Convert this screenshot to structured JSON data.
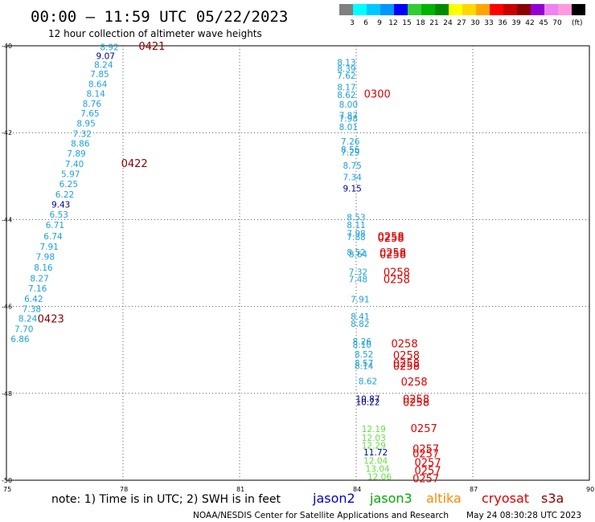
{
  "header": {
    "title": "00:00 – 11:59 UTC 05/22/2023",
    "subtitle": "12 hour collection of altimeter wave heights"
  },
  "color_scale": {
    "unit": "(ft)",
    "bins": [
      {
        "label": "",
        "color": "#808080"
      },
      {
        "label": "3",
        "color": "#00ffff"
      },
      {
        "label": "6",
        "color": "#00c8ff"
      },
      {
        "label": "9",
        "color": "#0096ff"
      },
      {
        "label": "12",
        "color": "#0000ff"
      },
      {
        "label": "15",
        "color": "#32cd32"
      },
      {
        "label": "18",
        "color": "#00b400"
      },
      {
        "label": "21",
        "color": "#008c00"
      },
      {
        "label": "24",
        "color": "#ffff00"
      },
      {
        "label": "27",
        "color": "#ffd700"
      },
      {
        "label": "30",
        "color": "#ffa500"
      },
      {
        "label": "33",
        "color": "#ff0000"
      },
      {
        "label": "36",
        "color": "#c80000"
      },
      {
        "label": "39",
        "color": "#8b0000"
      },
      {
        "label": "42",
        "color": "#9400d3"
      },
      {
        "label": "45",
        "color": "#ee82ee"
      },
      {
        "label": "70",
        "color": "#ff99dd"
      },
      {
        "label": "",
        "color": "#000000"
      }
    ]
  },
  "colors": {
    "cyan_text": "#1ea0d8",
    "navy_text": "#00008b",
    "green_text": "#66dd44",
    "time_red": "#dd0000",
    "time_darkred": "#880000",
    "grid": "#555555"
  },
  "chart_data": {
    "type": "scatter",
    "xlabel": "",
    "ylabel": "",
    "xlim": [
      75,
      90
    ],
    "ylim": [
      -50,
      -40
    ],
    "x_ticks": [
      75,
      78,
      81,
      84,
      87,
      90
    ],
    "y_ticks": [
      -40,
      -42,
      -44,
      -46,
      -48,
      -50
    ],
    "grid": true,
    "wave_heights": [
      {
        "lon": 77.65,
        "lat": -40.03,
        "text": "8.92",
        "color": "cyan"
      },
      {
        "lon": 77.55,
        "lat": -40.23,
        "text": "9.07",
        "color": "navy"
      },
      {
        "lon": 77.5,
        "lat": -40.43,
        "text": "8.24",
        "color": "cyan"
      },
      {
        "lon": 77.4,
        "lat": -40.65,
        "text": "7.85",
        "color": "cyan"
      },
      {
        "lon": 77.35,
        "lat": -40.88,
        "text": "8.64",
        "color": "cyan"
      },
      {
        "lon": 77.3,
        "lat": -41.1,
        "text": "8.14",
        "color": "cyan"
      },
      {
        "lon": 77.2,
        "lat": -41.33,
        "text": "8.76",
        "color": "cyan"
      },
      {
        "lon": 77.15,
        "lat": -41.55,
        "text": "7.65",
        "color": "cyan"
      },
      {
        "lon": 77.05,
        "lat": -41.78,
        "text": "8.95",
        "color": "cyan"
      },
      {
        "lon": 76.95,
        "lat": -42.02,
        "text": "7.32",
        "color": "cyan"
      },
      {
        "lon": 76.9,
        "lat": -42.25,
        "text": "8.86",
        "color": "cyan"
      },
      {
        "lon": 76.8,
        "lat": -42.48,
        "text": "7.89",
        "color": "cyan"
      },
      {
        "lon": 76.75,
        "lat": -42.72,
        "text": "7.40",
        "color": "cyan"
      },
      {
        "lon": 76.65,
        "lat": -42.95,
        "text": "5.97",
        "color": "cyan"
      },
      {
        "lon": 76.6,
        "lat": -43.18,
        "text": "6.25",
        "color": "cyan"
      },
      {
        "lon": 76.5,
        "lat": -43.42,
        "text": "6.22",
        "color": "cyan"
      },
      {
        "lon": 76.4,
        "lat": -43.65,
        "text": "9.43",
        "color": "navy"
      },
      {
        "lon": 76.35,
        "lat": -43.88,
        "text": "6.53",
        "color": "cyan"
      },
      {
        "lon": 76.25,
        "lat": -44.12,
        "text": "6.71",
        "color": "cyan"
      },
      {
        "lon": 76.2,
        "lat": -44.38,
        "text": "6.74",
        "color": "cyan"
      },
      {
        "lon": 76.1,
        "lat": -44.62,
        "text": "7.91",
        "color": "cyan"
      },
      {
        "lon": 76.0,
        "lat": -44.85,
        "text": "7.98",
        "color": "cyan"
      },
      {
        "lon": 75.95,
        "lat": -45.1,
        "text": "8.16",
        "color": "cyan"
      },
      {
        "lon": 75.85,
        "lat": -45.35,
        "text": "8.27",
        "color": "cyan"
      },
      {
        "lon": 75.8,
        "lat": -45.58,
        "text": "7.16",
        "color": "cyan"
      },
      {
        "lon": 75.7,
        "lat": -45.82,
        "text": "6.42",
        "color": "cyan"
      },
      {
        "lon": 75.65,
        "lat": -46.05,
        "text": "7.38",
        "color": "cyan"
      },
      {
        "lon": 75.55,
        "lat": -46.28,
        "text": "8.24",
        "color": "cyan"
      },
      {
        "lon": 75.45,
        "lat": -46.52,
        "text": "7.70",
        "color": "cyan"
      },
      {
        "lon": 75.35,
        "lat": -46.75,
        "text": "6.86",
        "color": "cyan"
      },
      {
        "lon": 83.75,
        "lat": -40.38,
        "text": "8.13",
        "color": "cyan"
      },
      {
        "lon": 83.75,
        "lat": -40.53,
        "text": "8.39",
        "color": "cyan"
      },
      {
        "lon": 83.75,
        "lat": -40.68,
        "text": "7.62",
        "color": "cyan"
      },
      {
        "lon": 83.75,
        "lat": -40.95,
        "text": "8.17",
        "color": "cyan"
      },
      {
        "lon": 83.75,
        "lat": -41.13,
        "text": "8.62",
        "color": "cyan"
      },
      {
        "lon": 83.8,
        "lat": -41.35,
        "text": "8.00",
        "color": "cyan"
      },
      {
        "lon": 83.8,
        "lat": -41.6,
        "text": "7.87",
        "color": "cyan"
      },
      {
        "lon": 83.8,
        "lat": -41.67,
        "text": "7.98",
        "color": "cyan"
      },
      {
        "lon": 83.8,
        "lat": -41.87,
        "text": "8.01",
        "color": "cyan"
      },
      {
        "lon": 83.85,
        "lat": -42.2,
        "text": "7.26",
        "color": "cyan"
      },
      {
        "lon": 83.85,
        "lat": -42.38,
        "text": "8.56",
        "color": "cyan"
      },
      {
        "lon": 83.85,
        "lat": -42.45,
        "text": "7.29",
        "color": "cyan"
      },
      {
        "lon": 83.9,
        "lat": -42.75,
        "text": "8.75",
        "color": "cyan"
      },
      {
        "lon": 83.9,
        "lat": -43.02,
        "text": "7.34",
        "color": "cyan"
      },
      {
        "lon": 83.9,
        "lat": -43.28,
        "text": "9.15",
        "color": "navy"
      },
      {
        "lon": 84.0,
        "lat": -43.95,
        "text": "8.53",
        "color": "cyan"
      },
      {
        "lon": 84.0,
        "lat": -44.12,
        "text": "8.11",
        "color": "cyan"
      },
      {
        "lon": 84.0,
        "lat": -44.32,
        "text": "7.98",
        "color": "cyan"
      },
      {
        "lon": 84.0,
        "lat": -44.4,
        "text": "7.88",
        "color": "cyan"
      },
      {
        "lon": 84.0,
        "lat": -44.75,
        "text": "8.52",
        "color": "cyan"
      },
      {
        "lon": 84.05,
        "lat": -44.8,
        "text": "8.64",
        "color": "cyan"
      },
      {
        "lon": 84.05,
        "lat": -45.2,
        "text": "7.32",
        "color": "cyan"
      },
      {
        "lon": 84.05,
        "lat": -45.37,
        "text": "7.48",
        "color": "cyan"
      },
      {
        "lon": 84.1,
        "lat": -45.83,
        "text": "7.91",
        "color": "cyan"
      },
      {
        "lon": 84.1,
        "lat": -46.23,
        "text": "8.41",
        "color": "cyan"
      },
      {
        "lon": 84.1,
        "lat": -46.4,
        "text": "8.82",
        "color": "cyan"
      },
      {
        "lon": 84.15,
        "lat": -46.8,
        "text": "8.26",
        "color": "cyan"
      },
      {
        "lon": 84.15,
        "lat": -46.88,
        "text": "8.10",
        "color": "cyan"
      },
      {
        "lon": 84.2,
        "lat": -47.1,
        "text": "8.52",
        "color": "cyan"
      },
      {
        "lon": 84.2,
        "lat": -47.3,
        "text": "8.57",
        "color": "cyan"
      },
      {
        "lon": 84.2,
        "lat": -47.37,
        "text": "8.14",
        "color": "cyan"
      },
      {
        "lon": 84.3,
        "lat": -47.72,
        "text": "8.62",
        "color": "cyan"
      },
      {
        "lon": 84.3,
        "lat": -48.12,
        "text": "10.87",
        "color": "navy"
      },
      {
        "lon": 84.3,
        "lat": -48.2,
        "text": "10.22",
        "color": "navy"
      },
      {
        "lon": 84.45,
        "lat": -48.82,
        "text": "12.19",
        "color": "green"
      },
      {
        "lon": 84.45,
        "lat": -49.02,
        "text": "12.03",
        "color": "green"
      },
      {
        "lon": 84.45,
        "lat": -49.2,
        "text": "12.29",
        "color": "green"
      },
      {
        "lon": 84.5,
        "lat": -49.35,
        "text": "11.72",
        "color": "navy"
      },
      {
        "lon": 84.5,
        "lat": -49.55,
        "text": "12.04",
        "color": "green"
      },
      {
        "lon": 84.55,
        "lat": -49.73,
        "text": "13.04",
        "color": "green"
      },
      {
        "lon": 84.6,
        "lat": -49.92,
        "text": "12.06",
        "color": "green"
      }
    ],
    "time_labels": [
      {
        "lon": 78.4,
        "lat": -40.0,
        "text": "0421",
        "color": "darkred"
      },
      {
        "lon": 77.95,
        "lat": -42.7,
        "text": "0422",
        "color": "darkred"
      },
      {
        "lon": 75.8,
        "lat": -46.28,
        "text": "0423",
        "color": "darkred"
      },
      {
        "lon": 84.2,
        "lat": -41.1,
        "text": "0300",
        "color": "red"
      },
      {
        "lon": 84.55,
        "lat": -44.38,
        "text": "0258",
        "color": "red"
      },
      {
        "lon": 84.55,
        "lat": -44.42,
        "text": "0258",
        "color": "red"
      },
      {
        "lon": 84.6,
        "lat": -44.75,
        "text": "0258",
        "color": "red"
      },
      {
        "lon": 84.6,
        "lat": -44.8,
        "text": "0258",
        "color": "red"
      },
      {
        "lon": 84.7,
        "lat": -45.2,
        "text": "0258",
        "color": "red"
      },
      {
        "lon": 84.7,
        "lat": -45.37,
        "text": "0258",
        "color": "red"
      },
      {
        "lon": 84.9,
        "lat": -46.85,
        "text": "0258",
        "color": "red"
      },
      {
        "lon": 84.95,
        "lat": -47.12,
        "text": "0258",
        "color": "red"
      },
      {
        "lon": 84.95,
        "lat": -47.3,
        "text": "0258",
        "color": "red"
      },
      {
        "lon": 84.95,
        "lat": -47.37,
        "text": "0258",
        "color": "red"
      },
      {
        "lon": 85.15,
        "lat": -47.73,
        "text": "0258",
        "color": "red"
      },
      {
        "lon": 85.2,
        "lat": -48.12,
        "text": "0258",
        "color": "red"
      },
      {
        "lon": 85.2,
        "lat": -48.2,
        "text": "0258",
        "color": "red"
      },
      {
        "lon": 85.4,
        "lat": -48.8,
        "text": "0257",
        "color": "red"
      },
      {
        "lon": 85.45,
        "lat": -49.27,
        "text": "0257",
        "color": "red"
      },
      {
        "lon": 85.45,
        "lat": -49.38,
        "text": "0257",
        "color": "red"
      },
      {
        "lon": 85.5,
        "lat": -49.58,
        "text": "0257",
        "color": "red"
      },
      {
        "lon": 85.5,
        "lat": -49.77,
        "text": "0257",
        "color": "red"
      },
      {
        "lon": 85.45,
        "lat": -49.95,
        "text": "0257",
        "color": "red"
      }
    ]
  },
  "satellites": [
    {
      "name": "jason2",
      "color": "#0000cc"
    },
    {
      "name": "jason3",
      "color": "#00aa00"
    },
    {
      "name": "altika",
      "color": "#ff8800"
    },
    {
      "name": "cryosat",
      "color": "#dd0000"
    },
    {
      "name": "s3a",
      "color": "#880000"
    }
  ],
  "footer": {
    "note": "note:  1) Time is in UTC;  2) SWH is in feet",
    "credit": "NOAA/NESDIS Center for Satellite Applications and Research",
    "timestamp": "May 24 08:30:28 UTC 2023"
  }
}
